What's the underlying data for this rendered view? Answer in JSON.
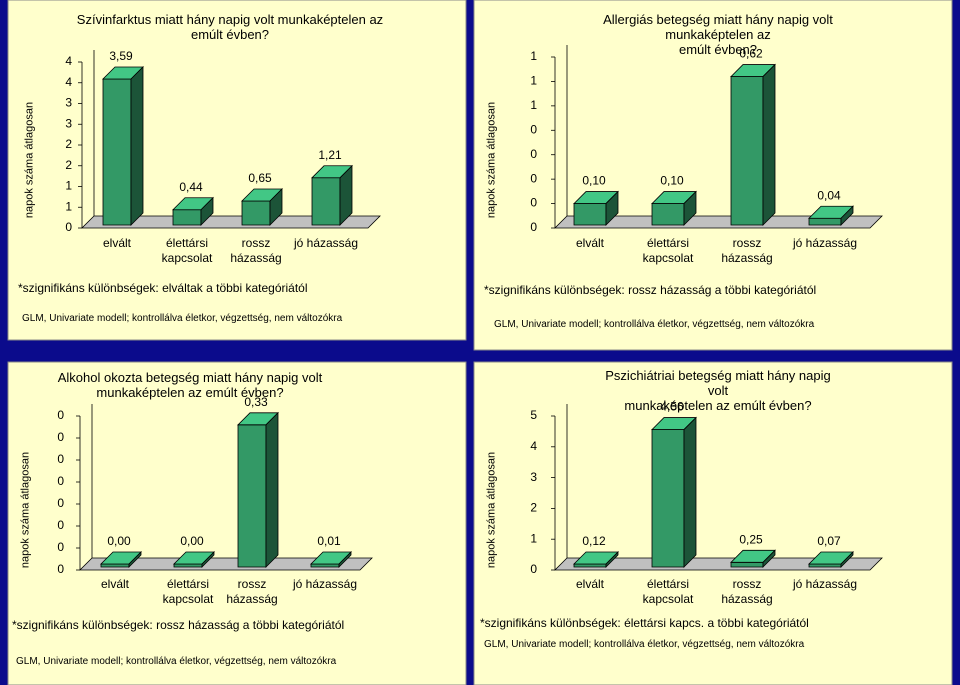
{
  "chart_data": [
    {
      "type": "bar3d",
      "title": "Szívinfarktus miatt hány napig volt munkaképtelen az\nemúlt évben?",
      "y_label": "napok száma átlagosan",
      "categories": [
        "elvált",
        "élettársi\nkapcsolat",
        "rossz\nházasság",
        "jó házasság"
      ],
      "values": [
        3.59,
        0.44,
        0.65,
        1.21
      ],
      "value_labels": [
        "3,59",
        "0,44",
        "0,65",
        "1,21"
      ],
      "color": "#339966",
      "ylim": [
        0,
        4
      ],
      "yticks": [
        0,
        {
          "value": 0.5,
          "label": "1"
        },
        1,
        {
          "value": 1.5,
          "label": "2"
        },
        2,
        {
          "value": 2.5,
          "label": "3"
        },
        3,
        {
          "value": 3.5,
          "label": "4"
        },
        4
      ],
      "note": "*szignifikáns különbségek: elváltak a többi kategóriától",
      "footnote": "GLM, Univariate modell; kontrollálva életkor, végzettség, nem változókra"
    },
    {
      "type": "bar3d",
      "title": "Allergiás betegség miatt hány napig volt munkaképtelen az\nemúlt évben?",
      "y_label": "napok száma átlagosan",
      "categories": [
        "elvált",
        "élettársi\nkapcsolat",
        "rossz\nházasság",
        "jó házasság"
      ],
      "values": [
        0.1,
        0.1,
        0.62,
        0.04
      ],
      "value_labels": [
        "0,10",
        "0,10",
        "0,62",
        "0,04"
      ],
      "color": "#339966",
      "ylim": [
        0,
        0.7
      ],
      "yticks": [
        0,
        {
          "value": 0.1,
          "label": "0"
        },
        {
          "value": 0.2,
          "label": "0"
        },
        {
          "value": 0.3,
          "label": "0"
        },
        {
          "value": 0.4,
          "label": "0"
        },
        {
          "value": 0.5,
          "label": "1"
        },
        {
          "value": 0.6,
          "label": "1"
        },
        {
          "value": 0.7,
          "label": "1"
        }
      ],
      "note": "*szignifikáns különbségek: rossz házasság a többi kategóriától",
      "footnote": "GLM, Univariate modell; kontrollálva életkor, végzettség, nem változókra"
    },
    {
      "type": "bar3d",
      "title": "Alkohol okozta betegség miatt hány napig volt\nmunkaképtelen az emúlt évben?",
      "y_label": "napok száma átlagosan",
      "categories": [
        "elvált",
        "élettársi\nkapcsolat",
        "rossz\nházasság",
        "jó házasság"
      ],
      "values": [
        0.0,
        0.0,
        0.33,
        0.01
      ],
      "value_labels": [
        "0,00",
        "0,00",
        "0,33",
        "0,01"
      ],
      "color": "#339966",
      "ylim": [
        0,
        0.35
      ],
      "yticks": [
        0,
        {
          "value": 0.05,
          "label": "0"
        },
        {
          "value": 0.1,
          "label": "0"
        },
        {
          "value": 0.15,
          "label": "0"
        },
        {
          "value": 0.2,
          "label": "0"
        },
        {
          "value": 0.25,
          "label": "0"
        },
        {
          "value": 0.3,
          "label": "0"
        },
        {
          "value": 0.35,
          "label": "0"
        }
      ],
      "note": "*szignifikáns különbségek: rossz házasság a többi kategóriától",
      "footnote": "GLM, Univariate modell; kontrollálva életkor, végzettség, nem változókra"
    },
    {
      "type": "bar3d",
      "title": "Pszichiátriai betegség miatt hány napig volt\nmunkaképtelen az emúlt évben?",
      "y_label": "napok száma átlagosan",
      "categories": [
        "elvált",
        "élettársi\nkapcsolat",
        "rossz\nházasság",
        "jó házasság"
      ],
      "values": [
        0.12,
        4.56,
        0.25,
        0.07
      ],
      "value_labels": [
        "0,12",
        "4,56",
        "0,25",
        "0,07"
      ],
      "color": "#339966",
      "ylim": [
        0,
        5
      ],
      "yticks": [
        0,
        1,
        2,
        3,
        4,
        5
      ],
      "note": "*szignifikáns különbségek: élettársi kapcs. a többi kategóriától",
      "footnote": "GLM, Univariate modell; kontrollálva életkor, végzettség, nem változókra"
    }
  ]
}
